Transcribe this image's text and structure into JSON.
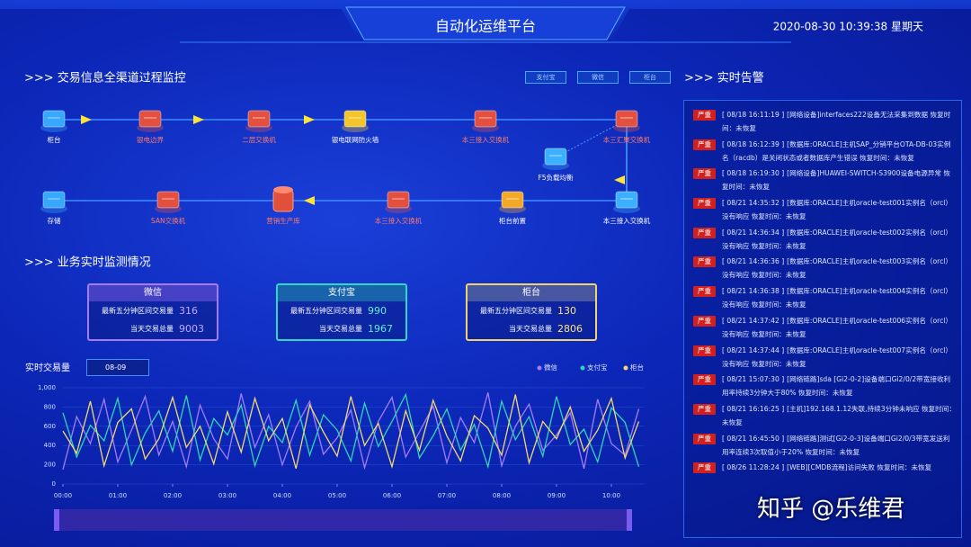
{
  "header": {
    "title": "自动化运维平台",
    "datetime": "2020-08-30 10:39:38 星期天"
  },
  "monitor": {
    "title": ">>> 交易信息全渠道过程监控",
    "buttons": [
      "支付宝",
      "微信",
      "柜台"
    ],
    "nodes": [
      {
        "label": "柜台"
      },
      {
        "label": "银电边界"
      },
      {
        "label": "二层交换机"
      },
      {
        "label": "银电联网防火墙"
      },
      {
        "label": "本三接入交换机"
      },
      {
        "label": "本三汇聚交换机"
      },
      {
        "label": "F5负载均衡"
      },
      {
        "label": "存储"
      },
      {
        "label": "SAN交换机"
      },
      {
        "label": "营销生产库"
      },
      {
        "label": "本三接入交换机"
      },
      {
        "label": "柜台前置"
      },
      {
        "label": "本三接入交换机"
      }
    ]
  },
  "business": {
    "title": ">>> 业务实时监测情况",
    "cards": [
      {
        "name": "微信",
        "rows": [
          [
            "最新五分钟区间交易量",
            "316"
          ],
          [
            "当天交易总量",
            "9003"
          ]
        ]
      },
      {
        "name": "支付宝",
        "rows": [
          [
            "最新五分钟区间交易量",
            "990"
          ],
          [
            "当天交易总量",
            "1967"
          ]
        ]
      },
      {
        "name": "柜台",
        "rows": [
          [
            "最新五分钟区间交易量",
            "130"
          ],
          [
            "当天交易总量",
            "2806"
          ]
        ]
      }
    ]
  },
  "chart_data": {
    "type": "line",
    "title": "实时交易量",
    "date_filter": "08-09",
    "x": [
      0,
      0.25,
      0.5,
      0.75,
      1,
      1.25,
      1.5,
      1.75,
      2,
      2.25,
      2.5,
      2.75,
      3,
      3.25,
      3.5,
      3.75,
      4,
      4.25,
      4.5,
      4.75,
      5,
      5.25,
      5.5,
      5.75,
      6,
      6.25,
      6.5,
      6.75,
      7,
      7.25,
      7.5,
      7.75,
      8,
      8.25,
      8.5,
      8.75,
      9,
      9.25,
      9.5,
      9.75,
      10,
      10.25,
      10.5
    ],
    "xlim": [
      0,
      10.6
    ],
    "xticks": [
      {
        "value": 0,
        "label": "00:00"
      },
      {
        "value": 1,
        "label": "01:00"
      },
      {
        "value": 2,
        "label": "02:00"
      },
      {
        "value": 3,
        "label": "03:00"
      },
      {
        "value": 4,
        "label": "04:00"
      },
      {
        "value": 5,
        "label": "05:00"
      },
      {
        "value": 6,
        "label": "06:00"
      },
      {
        "value": 7,
        "label": "07:00"
      },
      {
        "value": 8,
        "label": "08:00"
      },
      {
        "value": 9,
        "label": "09:00"
      },
      {
        "value": 10,
        "label": "10:00"
      }
    ],
    "ylim": [
      0,
      1000
    ],
    "yticks": [
      0,
      200,
      400,
      600,
      800,
      {
        "value": 1000,
        "label": "1,000"
      }
    ],
    "legend": "top-right",
    "series": [
      {
        "name": "微信",
        "color": "#a57cf5",
        "values": [
          150,
          700,
          420,
          880,
          230,
          560,
          910,
          300,
          650,
          180,
          820,
          470,
          260,
          940,
          380,
          720,
          200,
          590,
          860,
          310,
          480,
          770,
          170,
          650,
          900,
          280,
          540,
          810,
          220,
          690,
          430,
          950,
          190,
          600,
          830,
          350,
          510,
          740,
          160,
          880,
          420,
          300,
          780
        ]
      },
      {
        "name": "支付宝",
        "color": "#2fd6b0",
        "values": [
          740,
          280,
          610,
          450,
          890,
          200,
          530,
          760,
          340,
          920,
          250,
          680,
          510,
          820,
          190,
          600,
          430,
          870,
          300,
          720,
          560,
          240,
          840,
          390,
          650,
          930,
          270,
          500,
          780,
          350,
          620,
          180,
          860,
          460,
          700,
          290,
          910,
          410,
          570,
          230,
          790,
          640,
          180
        ]
      },
      {
        "name": "柜台",
        "color": "#f3d96e",
        "values": [
          550,
          320,
          860,
          190,
          640,
          780,
          260,
          470,
          900,
          380,
          600,
          210,
          750,
          330,
          890,
          450,
          680,
          160,
          820,
          540,
          290,
          910,
          400,
          630,
          180,
          760,
          350,
          870,
          500,
          240,
          710,
          580,
          300,
          930,
          220,
          650,
          470,
          800,
          340,
          560,
          890,
          270,
          650
        ]
      }
    ]
  },
  "alerts": {
    "title": ">>> 实时告警",
    "items": [
      {
        "level": "严重",
        "time": "[ 08/18 16:11:19 ]",
        "text": "[网络设备]interfaces222设备无法采集到数据 恢复时间：未恢复"
      },
      {
        "level": "严重",
        "time": "[ 08/18 16:12:39 ]",
        "text": "[数据库:ORACLE]主机SAP_分销平台OTA-DB-03实例名（racdb）是关闭状态或者数据库产生错误 恢复时间：未恢复"
      },
      {
        "level": "严重",
        "time": "[ 08/18 16:19:30 ]",
        "text": "[网络设备]HUAWEI-SWITCH-S3900设备电源异常 恢复时间：未恢复"
      },
      {
        "level": "严重",
        "time": "[ 08/21 14:35:32 ]",
        "text": "[数据库:ORACLE]主机oracle-test001实例名（orcl）没有响应 恢复时间：未恢复"
      },
      {
        "level": "严重",
        "time": "[ 08/21 14:36:34 ]",
        "text": "[数据库:ORACLE]主机oracle-test002实例名（orcl）没有响应 恢复时间：未恢复"
      },
      {
        "level": "严重",
        "time": "[ 08/21 14:36:36 ]",
        "text": "[数据库:ORACLE]主机oracle-test003实例名（orcl）没有响应 恢复时间：未恢复"
      },
      {
        "level": "严重",
        "time": "[ 08/21 14:36:38 ]",
        "text": "[数据库:ORACLE]主机oracle-test004实例名（orcl）没有响应 恢复时间：未恢复"
      },
      {
        "level": "严重",
        "time": "[ 08/21 14:37:42 ]",
        "text": "[数据库:ORACLE]主机oracle-test006实例名（orcl）没有响应 恢复时间：未恢复"
      },
      {
        "level": "严重",
        "time": "[ 08/21 14:37:44 ]",
        "text": "[数据库:ORACLE]主机oracle-test007实例名（orcl）没有响应 恢复时间：未恢复"
      },
      {
        "level": "严重",
        "time": "[ 08/21 15:07:30 ]",
        "text": "[网络链路]sda [Gi2-0-2]设备端口Gi2/0/2带宽接收利用率持续3分钟大于80% 恢复时间：未恢复"
      },
      {
        "level": "严重",
        "time": "[ 08/21 16:16:25 ]",
        "text": "[主机]192.168.1.12失联,持续3分钟未响应 恢复时间：未恢复"
      },
      {
        "level": "严重",
        "time": "[ 08/21 16:45:50 ]",
        "text": "[网络链路]测试[Gi2-0-3]设备端口Gi2/0/3带宽发送利用率连续3次取值小于20% 恢复时间：未恢复"
      },
      {
        "level": "严重",
        "time": "[ 08/26 11:28:24 ]",
        "text": "[WEB][CMDB流程]访问失败 恢复时间：未恢复"
      }
    ]
  },
  "watermark": "知乎 @乐维君"
}
